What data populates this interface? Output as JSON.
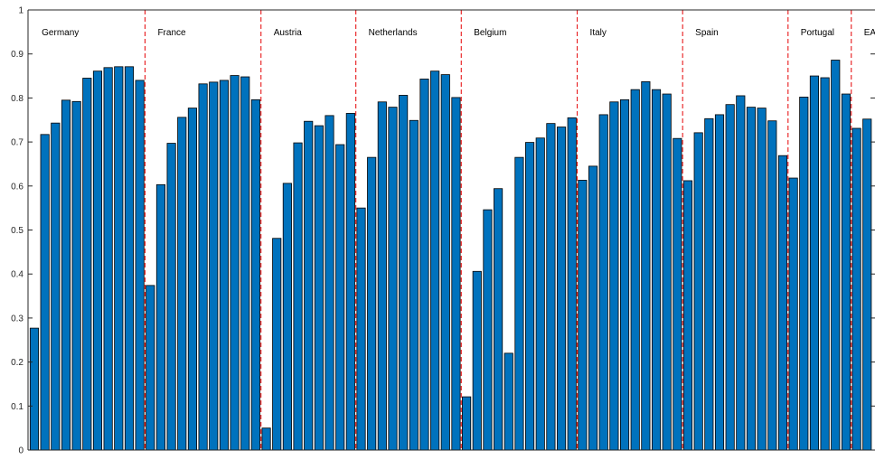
{
  "chart_data": {
    "type": "bar",
    "title": "",
    "xlabel": "",
    "ylabel": "",
    "ylim": [
      0,
      1
    ],
    "yticks": [
      "0",
      "0.1",
      "0.2",
      "0.3",
      "0.4",
      "0.5",
      "0.6",
      "0.7",
      "0.8",
      "0.9",
      "1"
    ],
    "grid": false,
    "legend": "none",
    "bar_color": "#0072BD",
    "divider_color": "#e8191b",
    "groups": [
      {
        "label": "Germany",
        "values": [
          0.277,
          0.717,
          0.743,
          0.795,
          0.792,
          0.845,
          0.861,
          0.869,
          0.871,
          0.871,
          0.84
        ]
      },
      {
        "label": "France",
        "values": [
          0.374,
          0.603,
          0.697,
          0.756,
          0.777,
          0.832,
          0.836,
          0.84,
          0.851,
          0.848,
          0.796
        ]
      },
      {
        "label": "Austria",
        "values": [
          0.05,
          0.481,
          0.606,
          0.698,
          0.747,
          0.737,
          0.76,
          0.694,
          0.765
        ]
      },
      {
        "label": "Netherlands",
        "values": [
          0.55,
          0.665,
          0.791,
          0.779,
          0.806,
          0.749,
          0.843,
          0.861,
          0.853,
          0.801
        ]
      },
      {
        "label": "Belgium",
        "values": [
          0.121,
          0.406,
          0.546,
          0.594,
          0.22,
          0.665,
          0.699,
          0.709,
          0.742,
          0.734,
          0.755
        ]
      },
      {
        "label": "Italy",
        "values": [
          0.613,
          0.645,
          0.762,
          0.791,
          0.796,
          0.819,
          0.837,
          0.819,
          0.809,
          0.708
        ]
      },
      {
        "label": "Spain",
        "values": [
          0.612,
          0.721,
          0.753,
          0.762,
          0.785,
          0.805,
          0.779,
          0.777,
          0.748,
          0.669
        ]
      },
      {
        "label": "Portugal",
        "values": [
          0.618,
          0.802,
          0.85,
          0.846,
          0.886,
          0.809
        ]
      },
      {
        "label": "EA",
        "values": [
          0.731,
          0.752
        ]
      }
    ]
  }
}
